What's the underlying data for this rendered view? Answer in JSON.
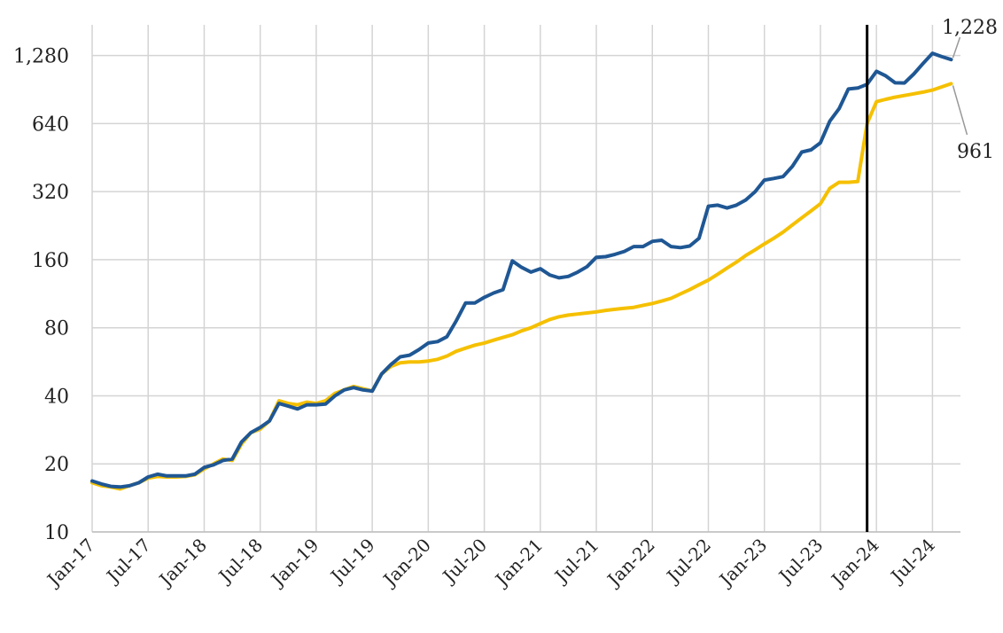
{
  "chart_data": {
    "type": "line",
    "title": "",
    "xlabel": "",
    "ylabel": "",
    "y_scale": "log2",
    "ylim": [
      10,
      1750
    ],
    "xlim": [
      "2017-01",
      "2024-10"
    ],
    "y_ticks": [
      10,
      20,
      40,
      80,
      160,
      320,
      640,
      1280
    ],
    "y_tick_labels": [
      "10",
      "20",
      "40",
      "80",
      "160",
      "320",
      "640",
      "1,280"
    ],
    "x_tick_labels": [
      "Jan-17",
      "Jul-17",
      "Jan-18",
      "Jul-18",
      "Jan-19",
      "Jul-19",
      "Jan-20",
      "Jul-20",
      "Jan-21",
      "Jul-21",
      "Jan-22",
      "Jul-22",
      "Jan-23",
      "Jul-23",
      "Jan-24",
      "Jul-24"
    ],
    "x_tick_dates": [
      "2017-01",
      "2017-07",
      "2018-01",
      "2018-07",
      "2019-01",
      "2019-07",
      "2020-01",
      "2020-07",
      "2021-01",
      "2021-07",
      "2022-01",
      "2022-07",
      "2023-01",
      "2023-07",
      "2024-01",
      "2024-07"
    ],
    "grid": true,
    "legend": "none",
    "vertical_marker": "2023-12",
    "series": [
      {
        "color": "#1f5794",
        "end_label": "1,228",
        "points": [
          [
            "2017-01",
            16.8
          ],
          [
            "2017-02",
            16.3
          ],
          [
            "2017-03",
            15.9
          ],
          [
            "2017-04",
            15.8
          ],
          [
            "2017-05",
            16.0
          ],
          [
            "2017-06",
            16.5
          ],
          [
            "2017-07",
            17.5
          ],
          [
            "2017-08",
            18.0
          ],
          [
            "2017-09",
            17.7
          ],
          [
            "2017-10",
            17.7
          ],
          [
            "2017-11",
            17.7
          ],
          [
            "2017-12",
            18.0
          ],
          [
            "2018-01",
            19.3
          ],
          [
            "2018-02",
            19.8
          ],
          [
            "2018-03",
            20.7
          ],
          [
            "2018-04",
            21.0
          ],
          [
            "2018-05",
            25.0
          ],
          [
            "2018-06",
            27.5
          ],
          [
            "2018-07",
            29.0
          ],
          [
            "2018-08",
            31.0
          ],
          [
            "2018-09",
            37.0
          ],
          [
            "2018-10",
            36.0
          ],
          [
            "2018-11",
            35.0
          ],
          [
            "2018-12",
            36.5
          ],
          [
            "2019-01",
            36.5
          ],
          [
            "2019-02",
            36.8
          ],
          [
            "2019-03",
            40.0
          ],
          [
            "2019-04",
            42.5
          ],
          [
            "2019-05",
            43.5
          ],
          [
            "2019-06",
            42.5
          ],
          [
            "2019-07",
            42.0
          ],
          [
            "2019-08",
            50.0
          ],
          [
            "2019-09",
            55.0
          ],
          [
            "2019-10",
            59.5
          ],
          [
            "2019-11",
            60.5
          ],
          [
            "2019-12",
            64.0
          ],
          [
            "2020-01",
            68.5
          ],
          [
            "2020-02",
            69.5
          ],
          [
            "2020-03",
            73.0
          ],
          [
            "2020-04",
            86.0
          ],
          [
            "2020-05",
            103.0
          ],
          [
            "2020-06",
            103.0
          ],
          [
            "2020-07",
            109.0
          ],
          [
            "2020-08",
            114.0
          ],
          [
            "2020-09",
            118.0
          ],
          [
            "2020-10",
            158.0
          ],
          [
            "2020-11",
            148.0
          ],
          [
            "2020-12",
            141.0
          ],
          [
            "2021-01",
            146.0
          ],
          [
            "2021-02",
            137.0
          ],
          [
            "2021-03",
            133.0
          ],
          [
            "2021-04",
            135.0
          ],
          [
            "2021-05",
            141.0
          ],
          [
            "2021-06",
            149.0
          ],
          [
            "2021-07",
            164.0
          ],
          [
            "2021-08",
            165.0
          ],
          [
            "2021-09",
            169.0
          ],
          [
            "2021-10",
            174.0
          ],
          [
            "2021-11",
            183.0
          ],
          [
            "2021-12",
            183.0
          ],
          [
            "2022-01",
            193.0
          ],
          [
            "2022-02",
            195.0
          ],
          [
            "2022-03",
            183.0
          ],
          [
            "2022-04",
            181.0
          ],
          [
            "2022-05",
            184.0
          ],
          [
            "2022-06",
            199.0
          ],
          [
            "2022-07",
            276.0
          ],
          [
            "2022-08",
            279.0
          ],
          [
            "2022-09",
            271.0
          ],
          [
            "2022-10",
            279.0
          ],
          [
            "2022-11",
            294.0
          ],
          [
            "2022-12",
            320.0
          ],
          [
            "2023-01",
            360.0
          ],
          [
            "2023-02",
            366.0
          ],
          [
            "2023-03",
            373.0
          ],
          [
            "2023-04",
            414.0
          ],
          [
            "2023-05",
            479.0
          ],
          [
            "2023-06",
            490.0
          ],
          [
            "2023-07",
            526.0
          ],
          [
            "2023-08",
            656.0
          ],
          [
            "2023-09",
            745.0
          ],
          [
            "2023-10",
            910.0
          ],
          [
            "2023-11",
            919.0
          ],
          [
            "2023-12",
            955.0
          ],
          [
            "2024-01",
            1090.0
          ],
          [
            "2024-02",
            1040.0
          ],
          [
            "2024-03",
            970.0
          ],
          [
            "2024-04",
            968.0
          ],
          [
            "2024-05",
            1060.0
          ],
          [
            "2024-06",
            1180.0
          ],
          [
            "2024-07",
            1310.0
          ],
          [
            "2024-08",
            1265.0
          ],
          [
            "2024-09",
            1228.0
          ]
        ]
      },
      {
        "color": "#f5c000",
        "end_label": "961",
        "points": [
          [
            "2017-01",
            16.5
          ],
          [
            "2017-02",
            16.0
          ],
          [
            "2017-03",
            15.8
          ],
          [
            "2017-04",
            15.5
          ],
          [
            "2017-05",
            16.0
          ],
          [
            "2017-06",
            16.5
          ],
          [
            "2017-07",
            17.3
          ],
          [
            "2017-08",
            17.6
          ],
          [
            "2017-09",
            17.5
          ],
          [
            "2017-10",
            17.5
          ],
          [
            "2017-11",
            17.6
          ],
          [
            "2017-12",
            17.9
          ],
          [
            "2018-01",
            19.0
          ],
          [
            "2018-02",
            20.0
          ],
          [
            "2018-03",
            21.0
          ],
          [
            "2018-04",
            20.7
          ],
          [
            "2018-05",
            24.5
          ],
          [
            "2018-06",
            27.5
          ],
          [
            "2018-07",
            28.5
          ],
          [
            "2018-08",
            31.0
          ],
          [
            "2018-09",
            38.0
          ],
          [
            "2018-10",
            37.0
          ],
          [
            "2018-11",
            36.5
          ],
          [
            "2018-12",
            37.5
          ],
          [
            "2019-01",
            37.0
          ],
          [
            "2019-02",
            38.0
          ],
          [
            "2019-03",
            41.0
          ],
          [
            "2019-04",
            42.5
          ],
          [
            "2019-05",
            44.0
          ],
          [
            "2019-06",
            43.0
          ],
          [
            "2019-07",
            42.0
          ],
          [
            "2019-08",
            50.0
          ],
          [
            "2019-09",
            54.0
          ],
          [
            "2019-10",
            56.0
          ],
          [
            "2019-11",
            56.5
          ],
          [
            "2019-12",
            56.5
          ],
          [
            "2020-01",
            57.0
          ],
          [
            "2020-02",
            58.0
          ],
          [
            "2020-03",
            60.0
          ],
          [
            "2020-04",
            63.0
          ],
          [
            "2020-05",
            65.0
          ],
          [
            "2020-06",
            67.0
          ],
          [
            "2020-07",
            68.5
          ],
          [
            "2020-08",
            70.5
          ],
          [
            "2020-09",
            72.5
          ],
          [
            "2020-10",
            74.5
          ],
          [
            "2020-11",
            77.5
          ],
          [
            "2020-12",
            80.0
          ],
          [
            "2021-01",
            83.5
          ],
          [
            "2021-02",
            87.0
          ],
          [
            "2021-03",
            89.5
          ],
          [
            "2021-04",
            91.0
          ],
          [
            "2021-05",
            92.0
          ],
          [
            "2021-06",
            93.0
          ],
          [
            "2021-07",
            94.0
          ],
          [
            "2021-08",
            95.5
          ],
          [
            "2021-09",
            96.5
          ],
          [
            "2021-10",
            97.5
          ],
          [
            "2021-11",
            98.5
          ],
          [
            "2021-12",
            100.5
          ],
          [
            "2022-01",
            102.5
          ],
          [
            "2022-02",
            105.0
          ],
          [
            "2022-03",
            108.0
          ],
          [
            "2022-04",
            113.0
          ],
          [
            "2022-05",
            118.0
          ],
          [
            "2022-06",
            124.0
          ],
          [
            "2022-07",
            130.0
          ],
          [
            "2022-08",
            138.0
          ],
          [
            "2022-09",
            147.0
          ],
          [
            "2022-10",
            156.0
          ],
          [
            "2022-11",
            167.0
          ],
          [
            "2022-12",
            177.0
          ],
          [
            "2023-01",
            188.0
          ],
          [
            "2023-02",
            199.0
          ],
          [
            "2023-03",
            212.0
          ],
          [
            "2023-04",
            228.0
          ],
          [
            "2023-05",
            245.0
          ],
          [
            "2023-06",
            263.0
          ],
          [
            "2023-07",
            283.0
          ],
          [
            "2023-08",
            331.0
          ],
          [
            "2023-09",
            352.0
          ],
          [
            "2023-10",
            352.0
          ],
          [
            "2023-11",
            355.0
          ],
          [
            "2023-12",
            640.0
          ],
          [
            "2024-01",
            800.0
          ],
          [
            "2024-02",
            820.0
          ],
          [
            "2024-03",
            838.0
          ],
          [
            "2024-04",
            852.0
          ],
          [
            "2024-05",
            867.0
          ],
          [
            "2024-06",
            882.0
          ],
          [
            "2024-07",
            900.0
          ],
          [
            "2024-08",
            930.0
          ],
          [
            "2024-09",
            961.0
          ]
        ]
      }
    ]
  }
}
